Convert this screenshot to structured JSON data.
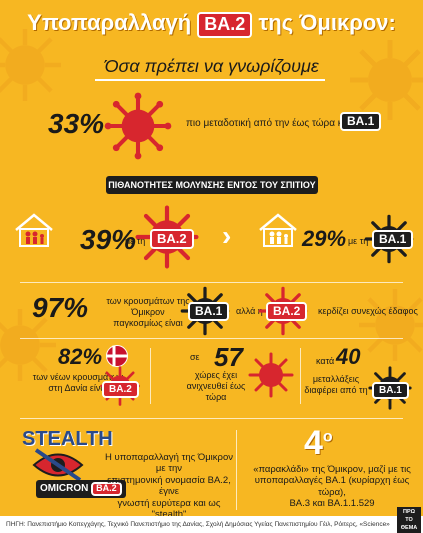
{
  "header": {
    "title_prefix": "Υποπαραλλαγή",
    "title_variant": "BA.2",
    "title_suffix": "της Όμικρον:",
    "subtitle": "Όσα πρέπει να γνωρίζουμε"
  },
  "stat_transmissible": {
    "value": "33%",
    "text": "πιο μεταδοτική από την έως τώρα κυρίαρχη",
    "variant": "BA.1"
  },
  "household": {
    "banner": "ΠΙΘΑΝΟΤΗΤΕΣ ΜΟΛΥΝΣΗΣ ΕΝΤΟΣ ΤΟΥ ΣΠΙΤΙΟΥ",
    "left_value": "39%",
    "left_prefix": "με τη",
    "left_variant": "BA.2",
    "right_value": "29%",
    "right_prefix": "με τη",
    "right_variant": "BA.1",
    "arrow": "›"
  },
  "global": {
    "value": "97%",
    "text_line1": "των κρουσμάτων της Όμικρον",
    "text_line2": "παγκοσμίως είναι",
    "variant_a": "BA.1",
    "connector": "αλλά η",
    "variant_b": "BA.2",
    "tail": "κερδίζει συνεχώς έδαφος"
  },
  "denmark": {
    "value": "82%",
    "text_line1": "των νέων κρουσμάτων",
    "text_line2": "στη Δανία είναι",
    "variant": "BA.2"
  },
  "countries": {
    "prefix": "σε",
    "value": "57",
    "text_line1": "χώρες έχει",
    "text_line2": "ανιχνευθεί έως τώρα"
  },
  "mutations": {
    "prefix": "κατά",
    "value": "40",
    "text_line1": "μεταλλάξεις",
    "text_line2": "διαφέρει από τη",
    "variant": "BA.1"
  },
  "stealth": {
    "label": "STEALTH",
    "tag_prefix": "OMICRON",
    "tag_variant": "BA.2",
    "text_line1": "Η υποπαραλλαγή της Όμικρον με την",
    "text_line2": "επιστημονική ονομασία BA.2, έγινε",
    "text_line3": "γνωστή ευρύτερα και ως \"stealth\""
  },
  "fourth": {
    "value": "4",
    "ordinal": "ο",
    "text_line1": "«παρακλάδι» της Όμικρον, μαζί με τις",
    "text_line2": "υποπαραλλαγές BA.1 (κυρίαρχη έως τώρα),",
    "text_line3": "BA.3 και BA.1.1.529"
  },
  "footer": {
    "source": "ΠΗΓΗ: Πανεπιστήμιο Κοπεγχάγης, Τεχνικό Πανεπιστήμιο της Δανίας, Σχολή Δημόσιας Υγείας Πανεπιστημίου Γέιλ, Ρόιτερς, «Science»",
    "logo_line1": "ΠΡΩ",
    "logo_line2": "ΤΟ",
    "logo_line3": "ΘΕΜΑ"
  },
  "colors": {
    "background": "#f7b722",
    "virus_red": "#d7262e",
    "dark": "#1d1d1d",
    "stealth_blue": "#2a4a8a"
  }
}
